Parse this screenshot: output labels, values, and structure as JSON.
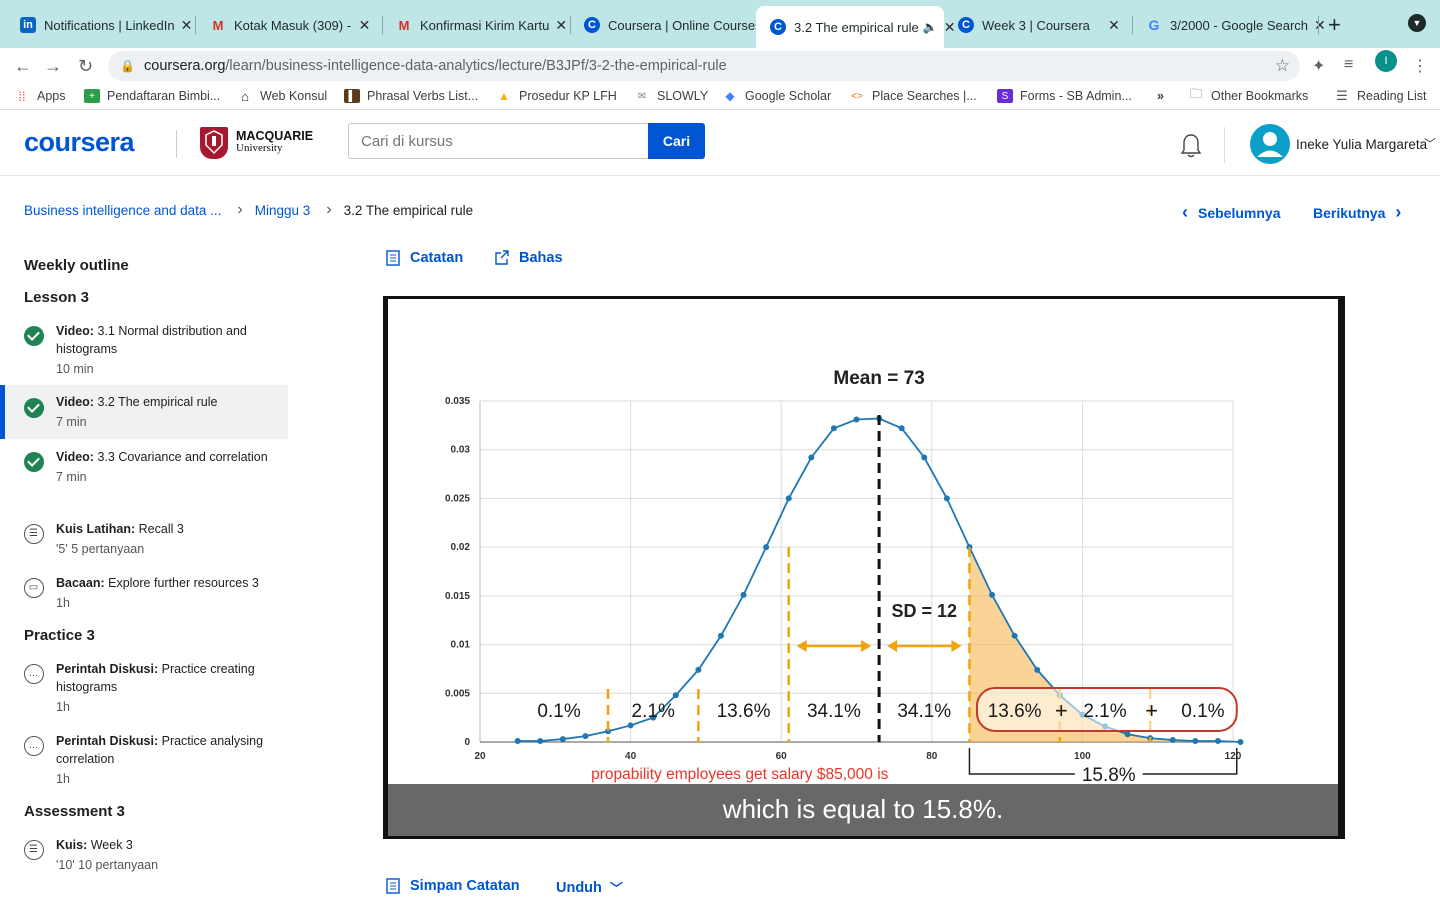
{
  "browser": {
    "tabs": [
      {
        "title": "Notifications | LinkedIn",
        "icon": "linkedin-icon"
      },
      {
        "title": "Kotak Masuk (309) - ",
        "icon": "gmail-icon"
      },
      {
        "title": "Konfirmasi Kirim Kartu",
        "icon": "gmail-icon"
      },
      {
        "title": "Coursera | Online Courses",
        "icon": "coursera-icon"
      },
      {
        "title": "3.2 The empirical rule",
        "icon": "coursera-icon"
      },
      {
        "title": "Week 3 | Coursera",
        "icon": "coursera-icon"
      },
      {
        "title": "3/2000 - Google Search",
        "icon": "google-icon"
      }
    ],
    "url_host": "coursera.org",
    "url_path": "/learn/business-intelligence-data-analytics/lecture/B3JPf/3-2-the-empirical-rule",
    "profile_initial": "I",
    "bookmarks": [
      "Apps",
      "Pendaftaran Bimbi...",
      "Web Konsul",
      "Phrasal Verbs List...",
      "Prosedur KP LFH",
      "SLOWLY",
      "Google Scholar",
      "Place Searches |...",
      "Forms - SB Admin...",
      "»",
      "Other Bookmarks",
      "Reading List"
    ]
  },
  "header": {
    "logo": "coursera",
    "partner_name": "MACQUARIE",
    "partner_sub": "University",
    "search_placeholder": "Cari di kursus",
    "search_button": "Cari",
    "user_name": "Ineke Yulia Margareta"
  },
  "breadcrumb": {
    "course": "Business intelligence and data ...",
    "week": "Minggu 3",
    "current": "3.2 The empirical rule",
    "prev": "Sebelumnya",
    "next": "Berikutnya"
  },
  "sidebar": {
    "title": "Weekly outline",
    "sections": [
      {
        "heading": "Lesson 3"
      },
      {
        "heading": "Practice 3"
      },
      {
        "heading": "Assessment 3"
      }
    ],
    "items": [
      {
        "type": "Video:",
        "name": "3.1 Normal distribution and histograms",
        "meta": "10 min"
      },
      {
        "type": "Video:",
        "name": "3.2 The empirical rule",
        "meta": "7 min"
      },
      {
        "type": "Video:",
        "name": "3.3 Covariance and correlation",
        "meta": "7 min"
      },
      {
        "type": "Kuis Latihan:",
        "name": "Recall 3",
        "meta": "'5' 5 pertanyaan"
      },
      {
        "type": "Bacaan:",
        "name": "Explore further resources 3",
        "meta": "1h"
      },
      {
        "type": "Perintah Diskusi:",
        "name": "Practice creating histograms",
        "meta": "1h"
      },
      {
        "type": "Perintah Diskusi:",
        "name": "Practice analysing correlation",
        "meta": "1h"
      },
      {
        "type": "Kuis:",
        "name": "Week 3",
        "meta": "'10' 10 pertanyaan"
      }
    ]
  },
  "main": {
    "notes_label": "Catatan",
    "discuss_label": "Bahas",
    "save_notes": "Simpan Catatan",
    "download": "Unduh",
    "caption": "which is equal to 15.8%."
  },
  "chart_data": {
    "type": "line",
    "title": "Mean = 73",
    "sd_label": "SD = 12",
    "xlim": [
      20,
      120
    ],
    "ylim": [
      0,
      0.035
    ],
    "xticks": [
      20,
      40,
      60,
      80,
      100,
      120
    ],
    "yticks": [
      "0",
      "0.005",
      "0.01",
      "0.015",
      "0.02",
      "0.025",
      "0.03",
      "0.035"
    ],
    "mean": 73,
    "sd": 12,
    "x": [
      25,
      28,
      31,
      34,
      37,
      40,
      43,
      46,
      49,
      52,
      55,
      58,
      61,
      64,
      67,
      70,
      73,
      76,
      79,
      82,
      85,
      88,
      91,
      94,
      97,
      100,
      103,
      106,
      109,
      112,
      115,
      118,
      121
    ],
    "y": [
      0.0001,
      0.0001,
      0.0003,
      0.0006,
      0.0011,
      0.0017,
      0.0025,
      0.0048,
      0.0074,
      0.0109,
      0.0151,
      0.02,
      0.025,
      0.0292,
      0.0322,
      0.0331,
      0.0332,
      0.0322,
      0.0292,
      0.025,
      0.02,
      0.0151,
      0.0109,
      0.0074,
      0.0048,
      0.0028,
      0.0016,
      0.0008,
      0.0004,
      0.0002,
      0.0001,
      0.0001,
      0.0
    ],
    "sd_lines": [
      37,
      49,
      61,
      73,
      85,
      97,
      109
    ],
    "region_labels": [
      "0.1%",
      "2.1%",
      "13.6%",
      "34.1%",
      "34.1%",
      "13.6%",
      "2.1%",
      "0.1%"
    ],
    "shaded_from": 85,
    "annotation": "propability employees get  salary $85,000 is",
    "total_label": "15.8%",
    "colors": {
      "curve": "#1f77b4",
      "shade": "#f5b041",
      "sd": "#f0a30a",
      "highlight": "#c0392b",
      "annotation": "#e8352a"
    }
  }
}
